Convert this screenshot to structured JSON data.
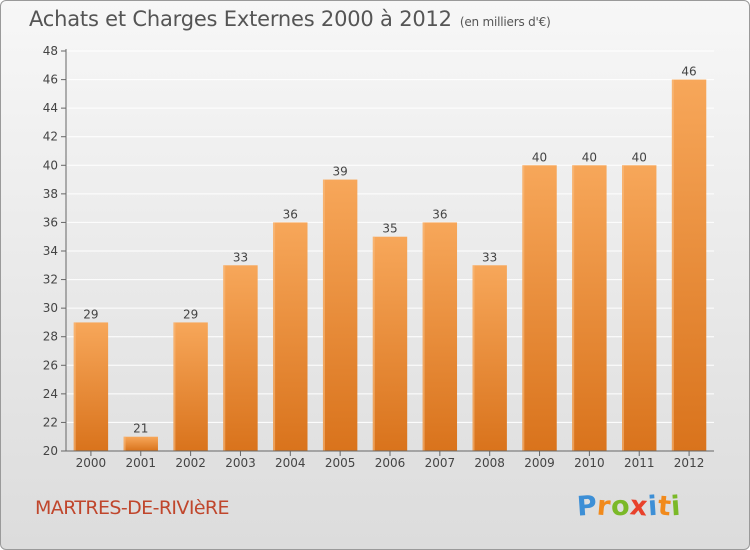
{
  "header": {
    "title": "Achats et Charges Externes 2000 à 2012",
    "subtitle": "(en milliers d'€)"
  },
  "footer": {
    "commune": "MARTRES-DE-RIVIèRE",
    "logo_letters": [
      "P",
      "r",
      "o",
      "x",
      "i",
      "t",
      "i"
    ],
    "logo_colors": [
      "#3d8fd6",
      "#f18a1c",
      "#7bb928",
      "#e8412b",
      "#3d8fd6",
      "#f18a1c",
      "#7bb928"
    ]
  },
  "colors": {
    "bar_top": "#f7a75a",
    "bar_bottom": "#d9731c",
    "grid": "#ffffff",
    "text": "#444444"
  },
  "chart_data": {
    "type": "bar",
    "title": "Achats et Charges Externes 2000 à 2012",
    "subtitle": "(en milliers d'€)",
    "categories": [
      "2000",
      "2001",
      "2002",
      "2003",
      "2004",
      "2005",
      "2006",
      "2007",
      "2008",
      "2009",
      "2010",
      "2011",
      "2012"
    ],
    "values": [
      29,
      21,
      29,
      33,
      36,
      39,
      35,
      36,
      33,
      40,
      40,
      40,
      46
    ],
    "ylim": [
      20,
      48
    ],
    "yticks": [
      20,
      22,
      24,
      26,
      28,
      30,
      32,
      34,
      36,
      38,
      40,
      42,
      44,
      46,
      48
    ],
    "grid": true,
    "xlabel": "",
    "ylabel": ""
  }
}
